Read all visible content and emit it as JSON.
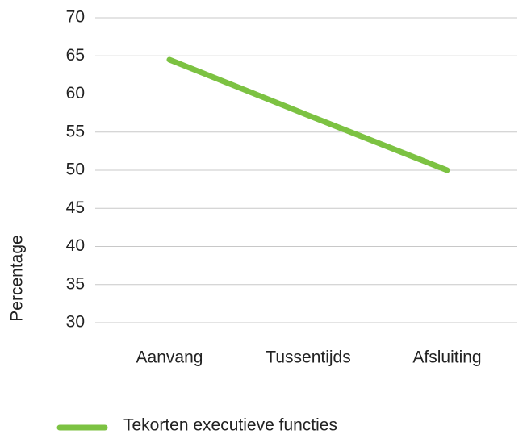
{
  "chart_data": {
    "type": "line",
    "categories": [
      "Aanvang",
      "Tussentijds",
      "Afsluiting"
    ],
    "series": [
      {
        "name": "Tekorten executieve functies",
        "color": "#7cc242",
        "values": [
          64.5,
          57.2,
          50
        ]
      }
    ],
    "y_label": "Percentage",
    "ylim": [
      30,
      70
    ],
    "yticks": [
      30,
      35,
      40,
      45,
      50,
      55,
      60,
      65,
      70
    ],
    "grid": true,
    "legend": "bottom"
  }
}
